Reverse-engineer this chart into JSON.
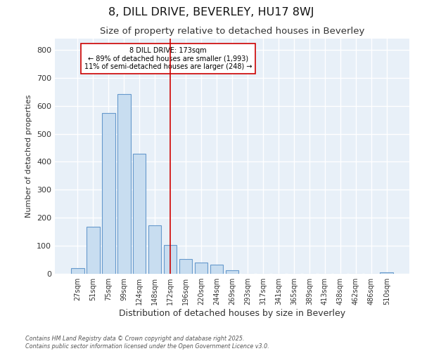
{
  "title": "8, DILL DRIVE, BEVERLEY, HU17 8WJ",
  "subtitle": "Size of property relative to detached houses in Beverley",
  "xlabel": "Distribution of detached houses by size in Beverley",
  "ylabel": "Number of detached properties",
  "bar_color": "#c8ddf0",
  "bar_edge_color": "#6699cc",
  "background_color": "#e8f0f8",
  "grid_color": "#ffffff",
  "annotation_line1": "8 DILL DRIVE: 173sqm",
  "annotation_line2": "← 89% of detached houses are smaller (1,993)",
  "annotation_line3": "11% of semi-detached houses are larger (248) →",
  "categories": [
    "27sqm",
    "51sqm",
    "75sqm",
    "99sqm",
    "124sqm",
    "148sqm",
    "172sqm",
    "196sqm",
    "220sqm",
    "244sqm",
    "269sqm",
    "293sqm",
    "317sqm",
    "341sqm",
    "365sqm",
    "389sqm",
    "413sqm",
    "438sqm",
    "462sqm",
    "486sqm",
    "510sqm"
  ],
  "values": [
    20,
    168,
    575,
    643,
    430,
    172,
    103,
    52,
    40,
    33,
    13,
    0,
    0,
    0,
    0,
    0,
    0,
    0,
    0,
    0,
    5
  ],
  "red_line_index": 6,
  "ylim": [
    0,
    840
  ],
  "yticks": [
    0,
    100,
    200,
    300,
    400,
    500,
    600,
    700,
    800
  ],
  "footer_line1": "Contains HM Land Registry data © Crown copyright and database right 2025.",
  "footer_line2": "Contains public sector information licensed under the Open Government Licence v3.0."
}
